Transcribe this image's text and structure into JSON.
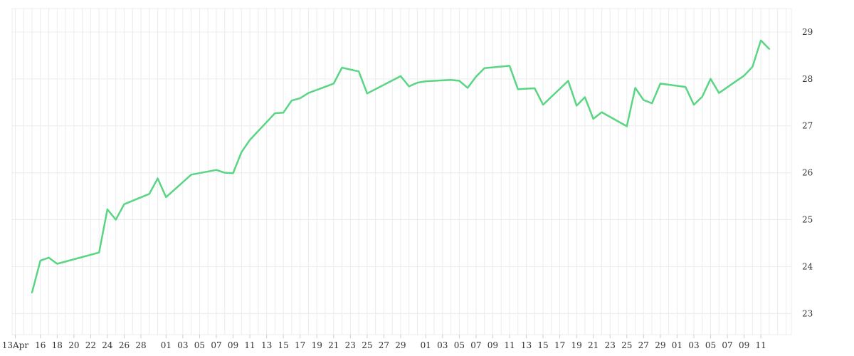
{
  "chart_data": {
    "type": "line",
    "title": "",
    "xlabel": "",
    "ylabel": "",
    "ylim": [
      22.55,
      29.5
    ],
    "y_ticks": [
      23,
      24,
      25,
      26,
      27,
      28,
      29
    ],
    "y_axis_side": "right",
    "grid": true,
    "line_color": "#5ad583",
    "grid_color": "#ececec",
    "x_tick_labels": [
      "13Apr",
      "16",
      "18",
      "20",
      "22",
      "24",
      "26",
      "28",
      "01",
      "03",
      "05",
      "07",
      "09",
      "11",
      "13",
      "15",
      "17",
      "19",
      "21",
      "23",
      "25",
      "27",
      "29",
      "01",
      "03",
      "05",
      "07",
      "09",
      "11",
      "13",
      "15",
      "17",
      "19",
      "21",
      "23",
      "25",
      "27",
      "29",
      "01",
      "03",
      "05",
      "07",
      "09",
      "11"
    ],
    "x_ticks": [
      "2021-04-13",
      "2021-04-16",
      "2021-04-18",
      "2021-04-20",
      "2021-04-22",
      "2021-04-24",
      "2021-04-26",
      "2021-04-28",
      "2021-05-01",
      "2021-05-03",
      "2021-05-05",
      "2021-05-07",
      "2021-05-09",
      "2021-05-11",
      "2021-05-13",
      "2021-05-15",
      "2021-05-17",
      "2021-05-19",
      "2021-05-21",
      "2021-05-23",
      "2021-05-25",
      "2021-05-27",
      "2021-05-29",
      "2021-06-01",
      "2021-06-03",
      "2021-06-05",
      "2021-06-07",
      "2021-06-09",
      "2021-06-11",
      "2021-06-13",
      "2021-06-15",
      "2021-06-17",
      "2021-06-19",
      "2021-06-21",
      "2021-06-23",
      "2021-06-25",
      "2021-06-27",
      "2021-06-29",
      "2021-07-01",
      "2021-07-03",
      "2021-07-05",
      "2021-07-07",
      "2021-07-09",
      "2021-07-11"
    ],
    "series": [
      {
        "x": [
          "2021-04-15",
          "2021-04-16",
          "2021-04-17",
          "2021-04-18",
          "2021-04-23",
          "2021-04-24",
          "2021-04-25",
          "2021-04-26",
          "2021-04-29",
          "2021-04-30",
          "2021-05-01",
          "2021-05-04",
          "2021-05-07",
          "2021-05-08",
          "2021-05-09",
          "2021-05-10",
          "2021-05-11",
          "2021-05-14",
          "2021-05-15",
          "2021-05-16",
          "2021-05-17",
          "2021-05-18",
          "2021-05-21",
          "2021-05-22",
          "2021-05-24",
          "2021-05-25",
          "2021-05-29",
          "2021-05-30",
          "2021-05-31",
          "2021-06-01",
          "2021-06-04",
          "2021-06-05",
          "2021-06-06",
          "2021-06-07",
          "2021-06-08",
          "2021-06-11",
          "2021-06-12",
          "2021-06-14",
          "2021-06-15",
          "2021-06-18",
          "2021-06-19",
          "2021-06-20",
          "2021-06-21",
          "2021-06-22",
          "2021-06-25",
          "2021-06-26",
          "2021-06-27",
          "2021-06-28",
          "2021-06-29",
          "2021-07-02",
          "2021-07-03",
          "2021-07-04",
          "2021-07-05",
          "2021-07-06",
          "2021-07-09",
          "2021-07-10",
          "2021-07-11",
          "2021-07-12"
        ],
        "values": [
          23.45,
          24.13,
          24.19,
          24.06,
          24.3,
          25.22,
          25.0,
          25.33,
          25.55,
          25.88,
          25.48,
          25.96,
          26.06,
          26.0,
          25.99,
          26.44,
          26.7,
          27.27,
          27.28,
          27.54,
          27.59,
          27.7,
          27.9,
          28.24,
          28.16,
          27.69,
          28.06,
          27.84,
          27.92,
          27.95,
          27.98,
          27.96,
          27.81,
          28.05,
          28.23,
          28.28,
          27.78,
          27.8,
          27.45,
          27.96,
          27.43,
          27.61,
          27.15,
          27.29,
          26.99,
          27.81,
          27.55,
          27.48,
          27.9,
          27.83,
          27.45,
          27.62,
          28.0,
          27.7,
          28.07,
          28.26,
          28.82,
          28.64
        ]
      }
    ]
  }
}
